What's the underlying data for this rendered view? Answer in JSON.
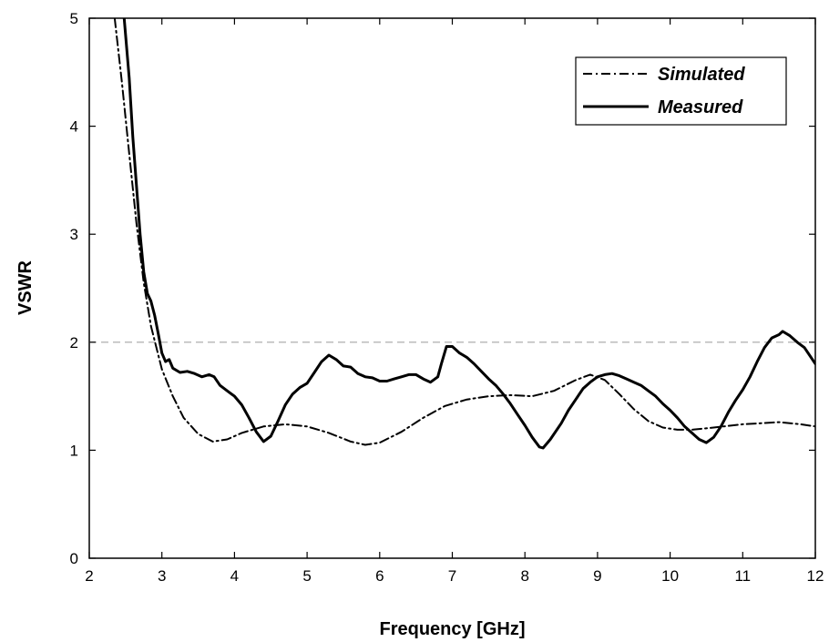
{
  "chart_data": {
    "type": "line",
    "xlabel": "Frequency [GHz]",
    "ylabel": "VSWR",
    "xlim": [
      2,
      12
    ],
    "ylim": [
      0,
      5
    ],
    "xticks": [
      "2",
      "3",
      "4",
      "5",
      "6",
      "7",
      "8",
      "9",
      "10",
      "11",
      "12"
    ],
    "yticks": [
      "0",
      "1",
      "2",
      "3",
      "4",
      "5"
    ],
    "grid": false,
    "legend_position": "top-right",
    "reference_line": {
      "y": 2,
      "style": "dashed",
      "color": "#bbbbbb"
    },
    "series": [
      {
        "name": "Simulated",
        "style": "dash-dot",
        "color": "#000000",
        "points": [
          [
            2.35,
            5.0
          ],
          [
            2.45,
            4.4
          ],
          [
            2.55,
            3.75
          ],
          [
            2.65,
            3.1
          ],
          [
            2.75,
            2.55
          ],
          [
            2.85,
            2.15
          ],
          [
            3.0,
            1.75
          ],
          [
            3.15,
            1.5
          ],
          [
            3.3,
            1.3
          ],
          [
            3.5,
            1.15
          ],
          [
            3.7,
            1.08
          ],
          [
            3.9,
            1.1
          ],
          [
            4.1,
            1.16
          ],
          [
            4.4,
            1.22
          ],
          [
            4.7,
            1.24
          ],
          [
            5.0,
            1.22
          ],
          [
            5.3,
            1.16
          ],
          [
            5.6,
            1.08
          ],
          [
            5.8,
            1.05
          ],
          [
            6.0,
            1.07
          ],
          [
            6.3,
            1.17
          ],
          [
            6.6,
            1.3
          ],
          [
            6.9,
            1.41
          ],
          [
            7.2,
            1.47
          ],
          [
            7.5,
            1.5
          ],
          [
            7.8,
            1.51
          ],
          [
            8.1,
            1.5
          ],
          [
            8.4,
            1.55
          ],
          [
            8.7,
            1.65
          ],
          [
            8.9,
            1.7
          ],
          [
            9.1,
            1.65
          ],
          [
            9.3,
            1.52
          ],
          [
            9.5,
            1.38
          ],
          [
            9.7,
            1.27
          ],
          [
            9.9,
            1.21
          ],
          [
            10.1,
            1.19
          ],
          [
            10.3,
            1.19
          ],
          [
            10.6,
            1.21
          ],
          [
            11.0,
            1.24
          ],
          [
            11.5,
            1.26
          ],
          [
            11.8,
            1.24
          ],
          [
            12.0,
            1.22
          ]
        ]
      },
      {
        "name": "Measured",
        "style": "solid",
        "color": "#000000",
        "points": [
          [
            2.48,
            5.0
          ],
          [
            2.55,
            4.45
          ],
          [
            2.6,
            3.9
          ],
          [
            2.65,
            3.45
          ],
          [
            2.7,
            3.0
          ],
          [
            2.75,
            2.65
          ],
          [
            2.8,
            2.45
          ],
          [
            2.85,
            2.38
          ],
          [
            2.9,
            2.25
          ],
          [
            2.95,
            2.08
          ],
          [
            3.0,
            1.9
          ],
          [
            3.05,
            1.82
          ],
          [
            3.1,
            1.84
          ],
          [
            3.15,
            1.76
          ],
          [
            3.25,
            1.72
          ],
          [
            3.35,
            1.73
          ],
          [
            3.45,
            1.71
          ],
          [
            3.55,
            1.68
          ],
          [
            3.65,
            1.7
          ],
          [
            3.72,
            1.68
          ],
          [
            3.8,
            1.6
          ],
          [
            3.9,
            1.55
          ],
          [
            4.0,
            1.5
          ],
          [
            4.1,
            1.42
          ],
          [
            4.2,
            1.3
          ],
          [
            4.3,
            1.17
          ],
          [
            4.4,
            1.08
          ],
          [
            4.5,
            1.13
          ],
          [
            4.6,
            1.27
          ],
          [
            4.7,
            1.42
          ],
          [
            4.8,
            1.52
          ],
          [
            4.9,
            1.58
          ],
          [
            5.0,
            1.62
          ],
          [
            5.1,
            1.72
          ],
          [
            5.2,
            1.82
          ],
          [
            5.3,
            1.88
          ],
          [
            5.4,
            1.84
          ],
          [
            5.5,
            1.78
          ],
          [
            5.6,
            1.77
          ],
          [
            5.7,
            1.71
          ],
          [
            5.8,
            1.68
          ],
          [
            5.9,
            1.67
          ],
          [
            6.0,
            1.64
          ],
          [
            6.1,
            1.64
          ],
          [
            6.2,
            1.66
          ],
          [
            6.3,
            1.68
          ],
          [
            6.4,
            1.7
          ],
          [
            6.5,
            1.7
          ],
          [
            6.6,
            1.66
          ],
          [
            6.7,
            1.63
          ],
          [
            6.8,
            1.68
          ],
          [
            6.85,
            1.8
          ],
          [
            6.92,
            1.96
          ],
          [
            7.0,
            1.96
          ],
          [
            7.1,
            1.9
          ],
          [
            7.2,
            1.86
          ],
          [
            7.3,
            1.8
          ],
          [
            7.4,
            1.73
          ],
          [
            7.5,
            1.66
          ],
          [
            7.6,
            1.6
          ],
          [
            7.7,
            1.52
          ],
          [
            7.8,
            1.43
          ],
          [
            7.9,
            1.33
          ],
          [
            8.0,
            1.23
          ],
          [
            8.1,
            1.12
          ],
          [
            8.2,
            1.03
          ],
          [
            8.25,
            1.02
          ],
          [
            8.35,
            1.1
          ],
          [
            8.5,
            1.25
          ],
          [
            8.6,
            1.37
          ],
          [
            8.7,
            1.47
          ],
          [
            8.8,
            1.57
          ],
          [
            8.9,
            1.63
          ],
          [
            9.0,
            1.68
          ],
          [
            9.1,
            1.7
          ],
          [
            9.2,
            1.71
          ],
          [
            9.3,
            1.69
          ],
          [
            9.4,
            1.66
          ],
          [
            9.5,
            1.63
          ],
          [
            9.6,
            1.6
          ],
          [
            9.7,
            1.55
          ],
          [
            9.8,
            1.5
          ],
          [
            9.9,
            1.43
          ],
          [
            10.0,
            1.37
          ],
          [
            10.1,
            1.3
          ],
          [
            10.2,
            1.22
          ],
          [
            10.3,
            1.16
          ],
          [
            10.4,
            1.1
          ],
          [
            10.5,
            1.07
          ],
          [
            10.6,
            1.12
          ],
          [
            10.7,
            1.22
          ],
          [
            10.8,
            1.35
          ],
          [
            10.9,
            1.46
          ],
          [
            11.0,
            1.56
          ],
          [
            11.1,
            1.68
          ],
          [
            11.2,
            1.82
          ],
          [
            11.3,
            1.95
          ],
          [
            11.4,
            2.04
          ],
          [
            11.5,
            2.07
          ],
          [
            11.55,
            2.1
          ],
          [
            11.65,
            2.06
          ],
          [
            11.75,
            2.0
          ],
          [
            11.85,
            1.95
          ],
          [
            11.95,
            1.85
          ],
          [
            12.0,
            1.8
          ]
        ]
      }
    ]
  }
}
